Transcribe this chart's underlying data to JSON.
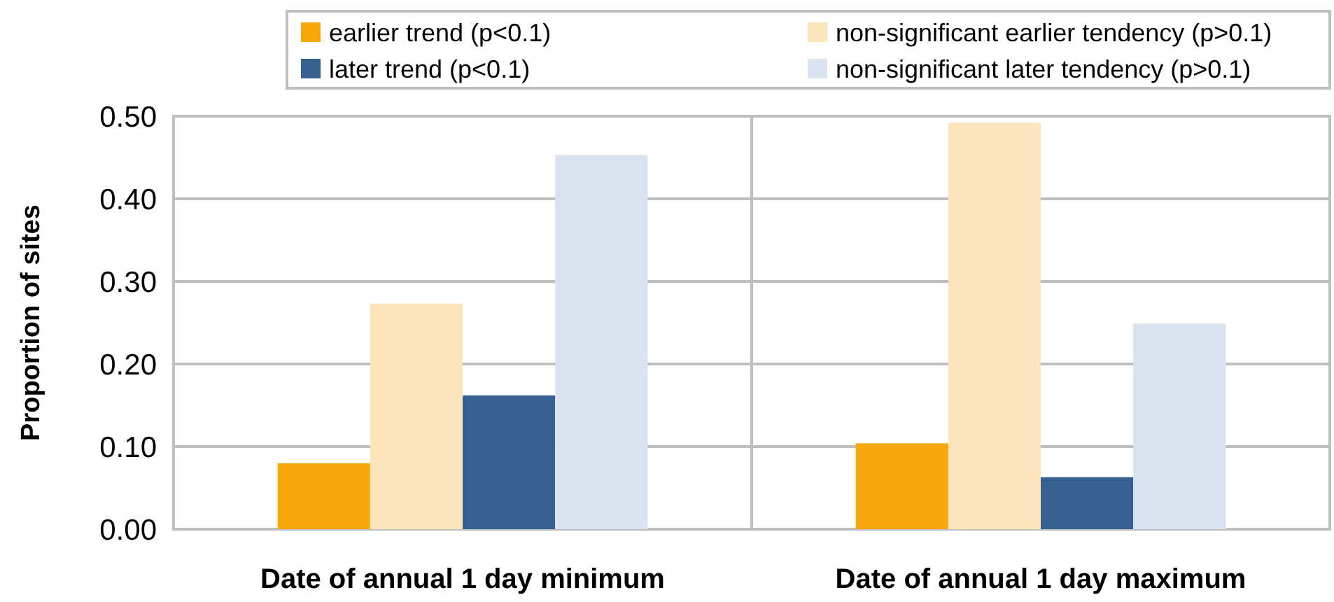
{
  "chart_data": {
    "type": "bar",
    "ylabel": "Proportion of sites",
    "categories": [
      "Date of annual 1 day minimum",
      "Date of annual 1 day maximum"
    ],
    "series": [
      {
        "name": "earlier trend (p<0.1)",
        "color": "#f7a80d",
        "values": [
          0.08,
          0.104
        ]
      },
      {
        "name": "non-significant earlier tendency (p>0.1)",
        "color": "#fce5bb",
        "values": [
          0.273,
          0.492
        ]
      },
      {
        "name": "later trend (p<0.1)",
        "color": "#366090",
        "values": [
          0.162,
          0.063
        ]
      },
      {
        "name": "non-significant later tendency (p>0.1)",
        "color": "#d8e3ef",
        "values": [
          0.453,
          0.249
        ]
      }
    ],
    "ylim": [
      0,
      0.5
    ],
    "yticks": [
      {
        "value": 0,
        "label": "0.00"
      },
      {
        "value": 0.1,
        "label": "0.10"
      },
      {
        "value": 0.2,
        "label": "0.20"
      },
      {
        "value": 0.3,
        "label": "0.30"
      },
      {
        "value": 0.4,
        "label": "0.40"
      },
      {
        "value": 0.5,
        "label": "0.50"
      }
    ],
    "grid": true,
    "legend": "top"
  }
}
